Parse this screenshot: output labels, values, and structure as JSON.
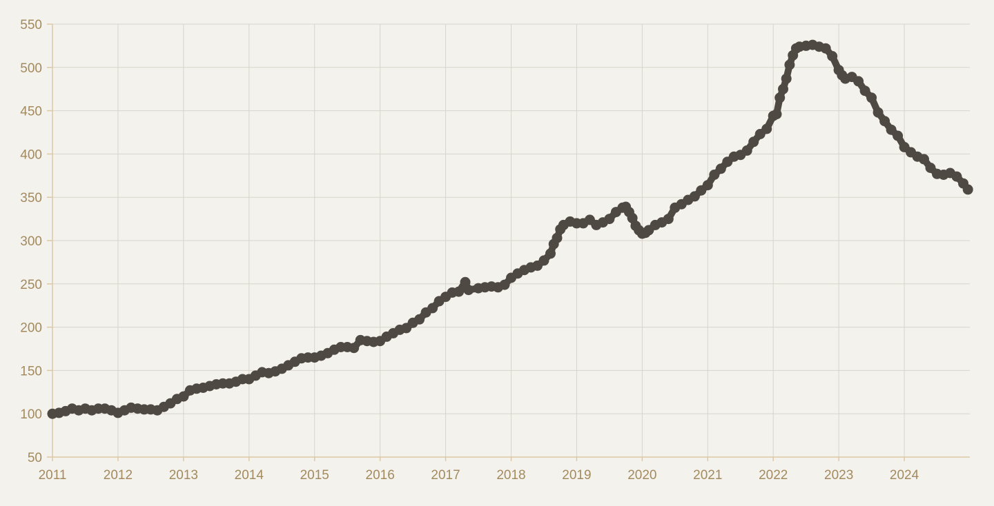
{
  "chart_data": {
    "type": "line",
    "title": "",
    "xlabel": "",
    "ylabel": "",
    "xlim": [
      2011,
      2025
    ],
    "ylim": [
      50,
      550
    ],
    "x_ticks": [
      2011,
      2012,
      2013,
      2014,
      2015,
      2016,
      2017,
      2018,
      2019,
      2020,
      2021,
      2022,
      2023,
      2024
    ],
    "x_tick_labels": [
      "2011",
      "2012",
      "2013",
      "2014",
      "2015",
      "2016",
      "2017",
      "2018",
      "2019",
      "2020",
      "2021",
      "2022",
      "2023",
      "2024"
    ],
    "y_ticks": [
      50,
      100,
      150,
      200,
      250,
      300,
      350,
      400,
      450,
      500,
      550
    ],
    "y_tick_labels": [
      "50",
      "100",
      "150",
      "200",
      "250",
      "300",
      "350",
      "400",
      "450",
      "500",
      "550"
    ],
    "grid": true,
    "legend": "none",
    "colors": {
      "background": "#f4f2ed",
      "series": "#4f4943",
      "grid": "#d8d4cc",
      "axis": "#dcc8a6",
      "tick_label": "#a38a5e"
    },
    "series": [
      {
        "marker": "circle",
        "points": [
          [
            2011.0,
            100
          ],
          [
            2011.1,
            101
          ],
          [
            2011.2,
            103
          ],
          [
            2011.3,
            106
          ],
          [
            2011.4,
            104
          ],
          [
            2011.5,
            106
          ],
          [
            2011.6,
            104
          ],
          [
            2011.7,
            106
          ],
          [
            2011.8,
            106
          ],
          [
            2011.9,
            104
          ],
          [
            2012.0,
            101
          ],
          [
            2012.1,
            104
          ],
          [
            2012.2,
            107
          ],
          [
            2012.3,
            106
          ],
          [
            2012.4,
            105
          ],
          [
            2012.5,
            105
          ],
          [
            2012.6,
            104
          ],
          [
            2012.7,
            108
          ],
          [
            2012.8,
            112
          ],
          [
            2012.9,
            117
          ],
          [
            2013.0,
            120
          ],
          [
            2013.1,
            127
          ],
          [
            2013.2,
            129
          ],
          [
            2013.3,
            130
          ],
          [
            2013.4,
            132
          ],
          [
            2013.5,
            134
          ],
          [
            2013.6,
            135
          ],
          [
            2013.7,
            135
          ],
          [
            2013.8,
            137
          ],
          [
            2013.9,
            140
          ],
          [
            2014.0,
            140
          ],
          [
            2014.1,
            144
          ],
          [
            2014.2,
            148
          ],
          [
            2014.3,
            147
          ],
          [
            2014.4,
            149
          ],
          [
            2014.5,
            152
          ],
          [
            2014.6,
            156
          ],
          [
            2014.7,
            160
          ],
          [
            2014.8,
            164
          ],
          [
            2014.9,
            165
          ],
          [
            2015.0,
            165
          ],
          [
            2015.1,
            167
          ],
          [
            2015.2,
            170
          ],
          [
            2015.3,
            174
          ],
          [
            2015.4,
            177
          ],
          [
            2015.5,
            177
          ],
          [
            2015.6,
            176
          ],
          [
            2015.7,
            185
          ],
          [
            2015.8,
            184
          ],
          [
            2015.9,
            183
          ],
          [
            2016.0,
            184
          ],
          [
            2016.1,
            189
          ],
          [
            2016.2,
            193
          ],
          [
            2016.3,
            197
          ],
          [
            2016.4,
            199
          ],
          [
            2016.5,
            205
          ],
          [
            2016.6,
            209
          ],
          [
            2016.7,
            217
          ],
          [
            2016.8,
            222
          ],
          [
            2016.9,
            230
          ],
          [
            2017.0,
            235
          ],
          [
            2017.1,
            240
          ],
          [
            2017.2,
            241
          ],
          [
            2017.3,
            252
          ],
          [
            2017.35,
            243
          ],
          [
            2017.5,
            245
          ],
          [
            2017.6,
            246
          ],
          [
            2017.7,
            247
          ],
          [
            2017.8,
            246
          ],
          [
            2017.9,
            249
          ],
          [
            2018.0,
            257
          ],
          [
            2018.1,
            262
          ],
          [
            2018.2,
            266
          ],
          [
            2018.3,
            269
          ],
          [
            2018.4,
            271
          ],
          [
            2018.5,
            277
          ],
          [
            2018.6,
            285
          ],
          [
            2018.65,
            296
          ],
          [
            2018.7,
            303
          ],
          [
            2018.75,
            313
          ],
          [
            2018.8,
            318
          ],
          [
            2018.9,
            322
          ],
          [
            2019.0,
            320
          ],
          [
            2019.1,
            320
          ],
          [
            2019.2,
            324
          ],
          [
            2019.3,
            318
          ],
          [
            2019.4,
            321
          ],
          [
            2019.5,
            325
          ],
          [
            2019.6,
            333
          ],
          [
            2019.7,
            338
          ],
          [
            2019.75,
            339
          ],
          [
            2019.8,
            333
          ],
          [
            2019.85,
            326
          ],
          [
            2019.9,
            317
          ],
          [
            2019.95,
            312
          ],
          [
            2020.0,
            308
          ],
          [
            2020.05,
            309
          ],
          [
            2020.1,
            312
          ],
          [
            2020.2,
            318
          ],
          [
            2020.3,
            321
          ],
          [
            2020.4,
            325
          ],
          [
            2020.5,
            338
          ],
          [
            2020.6,
            342
          ],
          [
            2020.7,
            347
          ],
          [
            2020.8,
            351
          ],
          [
            2020.9,
            358
          ],
          [
            2021.0,
            364
          ],
          [
            2021.1,
            376
          ],
          [
            2021.2,
            383
          ],
          [
            2021.3,
            391
          ],
          [
            2021.4,
            397
          ],
          [
            2021.5,
            399
          ],
          [
            2021.6,
            404
          ],
          [
            2021.7,
            414
          ],
          [
            2021.8,
            423
          ],
          [
            2021.9,
            429
          ],
          [
            2022.0,
            444
          ],
          [
            2022.05,
            446
          ],
          [
            2022.1,
            465
          ],
          [
            2022.15,
            475
          ],
          [
            2022.2,
            487
          ],
          [
            2022.25,
            503
          ],
          [
            2022.3,
            514
          ],
          [
            2022.35,
            522
          ],
          [
            2022.4,
            524
          ],
          [
            2022.5,
            525
          ],
          [
            2022.6,
            526
          ],
          [
            2022.7,
            524
          ],
          [
            2022.8,
            522
          ],
          [
            2022.9,
            513
          ],
          [
            2023.0,
            497
          ],
          [
            2023.05,
            491
          ],
          [
            2023.1,
            487
          ],
          [
            2023.2,
            489
          ],
          [
            2023.3,
            484
          ],
          [
            2023.4,
            473
          ],
          [
            2023.5,
            465
          ],
          [
            2023.6,
            448
          ],
          [
            2023.7,
            438
          ],
          [
            2023.8,
            428
          ],
          [
            2023.9,
            421
          ],
          [
            2024.0,
            408
          ],
          [
            2024.1,
            402
          ],
          [
            2024.2,
            397
          ],
          [
            2024.3,
            394
          ],
          [
            2024.4,
            384
          ],
          [
            2024.5,
            377
          ],
          [
            2024.6,
            376
          ],
          [
            2024.7,
            378
          ],
          [
            2024.8,
            374
          ],
          [
            2024.9,
            366
          ],
          [
            2024.97,
            359
          ]
        ]
      }
    ]
  }
}
